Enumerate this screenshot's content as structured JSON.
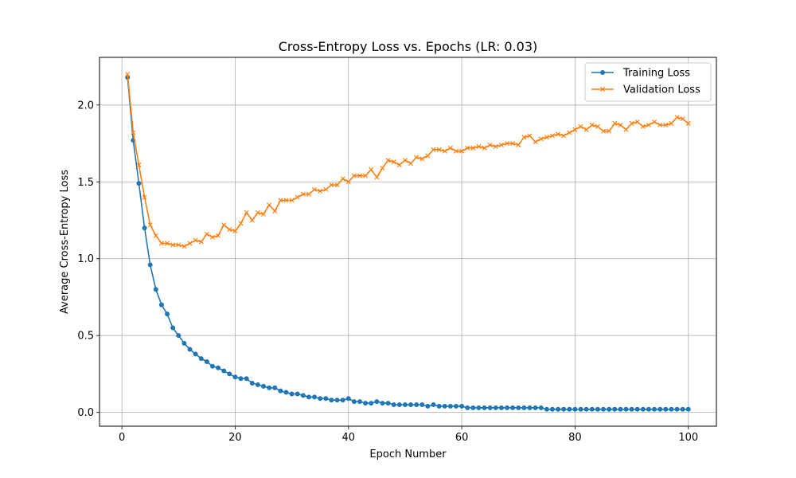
{
  "chart_data": {
    "type": "line",
    "title": "Cross-Entropy Loss vs. Epochs (LR: 0.03)",
    "xlabel": "Epoch Number",
    "ylabel": "Average Cross-Entropy Loss",
    "xlim": [
      -3.95,
      104.95
    ],
    "ylim": [
      -0.09,
      2.31
    ],
    "xticks": [
      0,
      20,
      40,
      60,
      80,
      100
    ],
    "xtick_labels": [
      "0",
      "20",
      "40",
      "60",
      "80",
      "100"
    ],
    "yticks": [
      0.0,
      0.5,
      1.0,
      1.5,
      2.0
    ],
    "ytick_labels": [
      "0.0",
      "0.5",
      "1.0",
      "1.5",
      "2.0"
    ],
    "grid": true,
    "legend_position": "top-right",
    "x": [
      1,
      2,
      3,
      4,
      5,
      6,
      7,
      8,
      9,
      10,
      11,
      12,
      13,
      14,
      15,
      16,
      17,
      18,
      19,
      20,
      21,
      22,
      23,
      24,
      25,
      26,
      27,
      28,
      29,
      30,
      31,
      32,
      33,
      34,
      35,
      36,
      37,
      38,
      39,
      40,
      41,
      42,
      43,
      44,
      45,
      46,
      47,
      48,
      49,
      50,
      51,
      52,
      53,
      54,
      55,
      56,
      57,
      58,
      59,
      60,
      61,
      62,
      63,
      64,
      65,
      66,
      67,
      68,
      69,
      70,
      71,
      72,
      73,
      74,
      75,
      76,
      77,
      78,
      79,
      80,
      81,
      82,
      83,
      84,
      85,
      86,
      87,
      88,
      89,
      90,
      91,
      92,
      93,
      94,
      95,
      96,
      97,
      98,
      99,
      100
    ],
    "series": [
      {
        "name": "Training Loss",
        "color": "#1f77b4",
        "marker": "circle",
        "values": [
          2.18,
          1.77,
          1.49,
          1.2,
          0.96,
          0.8,
          0.7,
          0.64,
          0.55,
          0.5,
          0.45,
          0.41,
          0.38,
          0.35,
          0.33,
          0.3,
          0.29,
          0.27,
          0.25,
          0.23,
          0.22,
          0.22,
          0.19,
          0.18,
          0.17,
          0.16,
          0.16,
          0.14,
          0.13,
          0.12,
          0.12,
          0.11,
          0.1,
          0.1,
          0.09,
          0.09,
          0.08,
          0.08,
          0.08,
          0.09,
          0.07,
          0.07,
          0.06,
          0.06,
          0.07,
          0.06,
          0.06,
          0.05,
          0.05,
          0.05,
          0.05,
          0.05,
          0.05,
          0.04,
          0.05,
          0.04,
          0.04,
          0.04,
          0.04,
          0.04,
          0.03,
          0.03,
          0.03,
          0.03,
          0.03,
          0.03,
          0.03,
          0.03,
          0.03,
          0.03,
          0.03,
          0.03,
          0.03,
          0.03,
          0.02,
          0.02,
          0.02,
          0.02,
          0.02,
          0.02,
          0.02,
          0.02,
          0.02,
          0.02,
          0.02,
          0.02,
          0.02,
          0.02,
          0.02,
          0.02,
          0.02,
          0.02,
          0.02,
          0.02,
          0.02,
          0.02,
          0.02,
          0.02,
          0.02,
          0.02
        ]
      },
      {
        "name": "Validation Loss",
        "color": "#ff7f0e",
        "marker": "x",
        "values": [
          2.2,
          1.82,
          1.61,
          1.4,
          1.22,
          1.15,
          1.1,
          1.1,
          1.09,
          1.09,
          1.08,
          1.1,
          1.12,
          1.11,
          1.16,
          1.14,
          1.15,
          1.22,
          1.19,
          1.18,
          1.23,
          1.3,
          1.25,
          1.3,
          1.29,
          1.35,
          1.31,
          1.38,
          1.38,
          1.38,
          1.4,
          1.42,
          1.42,
          1.45,
          1.44,
          1.45,
          1.48,
          1.48,
          1.52,
          1.5,
          1.54,
          1.54,
          1.54,
          1.58,
          1.53,
          1.59,
          1.64,
          1.63,
          1.61,
          1.64,
          1.62,
          1.66,
          1.65,
          1.67,
          1.71,
          1.71,
          1.7,
          1.72,
          1.7,
          1.7,
          1.72,
          1.72,
          1.73,
          1.72,
          1.74,
          1.73,
          1.74,
          1.75,
          1.75,
          1.74,
          1.79,
          1.8,
          1.76,
          1.78,
          1.79,
          1.8,
          1.81,
          1.8,
          1.82,
          1.84,
          1.86,
          1.84,
          1.87,
          1.86,
          1.83,
          1.83,
          1.88,
          1.87,
          1.84,
          1.88,
          1.89,
          1.86,
          1.87,
          1.89,
          1.87,
          1.87,
          1.88,
          1.92,
          1.91,
          1.88
        ]
      }
    ]
  }
}
